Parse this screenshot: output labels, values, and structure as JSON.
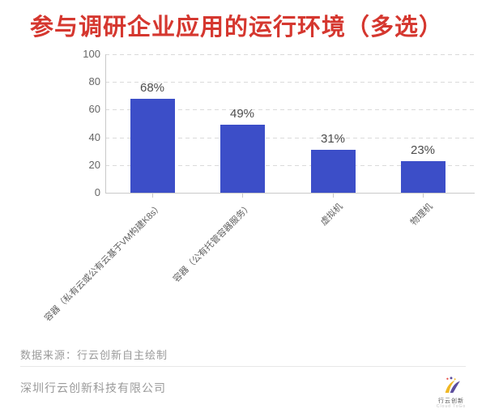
{
  "chart_data": {
    "type": "bar",
    "title": "参与调研企业应用的运行环境（多选）",
    "categories": [
      "容器（私有云或公有云基于VM构建K8s）",
      "容器（公有托管容器服务）",
      "虚拟机",
      "物理机"
    ],
    "values": [
      68,
      49,
      31,
      23
    ],
    "value_labels": [
      "68%",
      "49%",
      "31%",
      "23%"
    ],
    "xlabel": "",
    "ylabel": "",
    "ylim": [
      0,
      100
    ],
    "yticks": [
      0,
      20,
      40,
      60,
      80,
      100
    ],
    "grid": "horizontal-dashed",
    "legend": "none"
  },
  "colors": {
    "title": "#D5372F",
    "bar": "#3C4EC8",
    "value_label": "#4C4C4C",
    "axis_text": "#666666",
    "gridline": "#DADADA",
    "axis_line": "#C9C9C9",
    "muted_text": "#9A9A9A",
    "divider": "#E7E7E7",
    "logo_yellow": "#F0B723",
    "logo_purple": "#5C4E9E",
    "logo_red": "#E8483F"
  },
  "source_note": "数据来源：行云创新自主绘制",
  "footer": {
    "company": "深圳行云创新科技有限公司",
    "logo_text": "行云创新",
    "logo_subtext": "Cloud ToGo"
  }
}
